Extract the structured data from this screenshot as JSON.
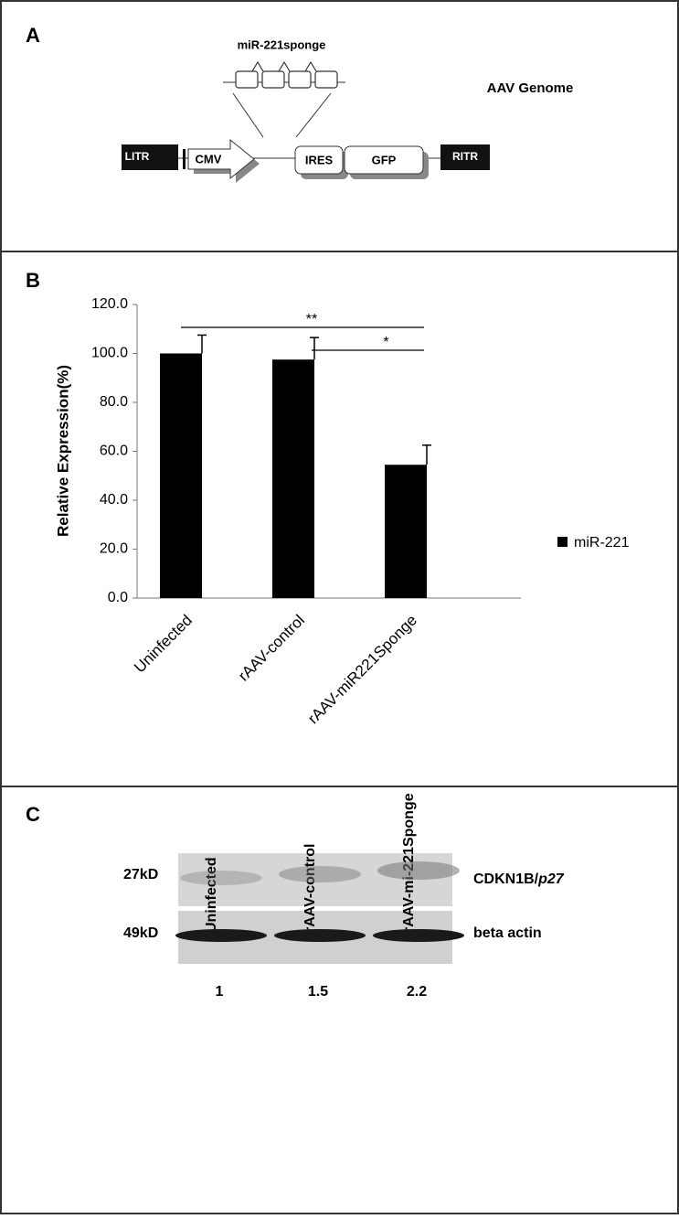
{
  "panel_a": {
    "label": "A",
    "title": "AAV Genome",
    "insert_label": "miR-221sponge",
    "elements": [
      "LITR",
      "CMV",
      "IRES",
      "GFP",
      "RITR"
    ]
  },
  "chart_data": {
    "type": "bar",
    "panel_label": "B",
    "y_label": "Relative Expression(%)",
    "categories": [
      "Uninfected",
      "rAAV-control",
      "rAAV-miR221Sponge"
    ],
    "series": [
      {
        "name": "miR-221",
        "color": "#000000",
        "values": [
          100,
          97.5,
          54.5
        ],
        "errors": [
          7.5,
          9,
          8
        ]
      }
    ],
    "ylim": [
      0,
      120
    ],
    "yticks": [
      {
        "value": 0,
        "label": "0.0"
      },
      {
        "value": 20,
        "label": "20.0"
      },
      {
        "value": 40,
        "label": "40.0"
      },
      {
        "value": 60,
        "label": "60.0"
      },
      {
        "value": 80,
        "label": "80.0"
      },
      {
        "value": 100,
        "label": "100.0"
      },
      {
        "value": 120,
        "label": "120.0"
      }
    ],
    "significance_labels": [
      "**",
      "*"
    ]
  },
  "panel_c": {
    "label": "C",
    "lanes": [
      "Uninfected",
      "rAAV-control",
      "rAAV-mi-221Sponge"
    ],
    "bands": [
      {
        "size": "27kD",
        "name": "CDKN1B/",
        "name_italic": "p27"
      },
      {
        "size": "49kD",
        "name": "beta actin"
      }
    ],
    "ratios": [
      1,
      1.5,
      2.2
    ]
  }
}
